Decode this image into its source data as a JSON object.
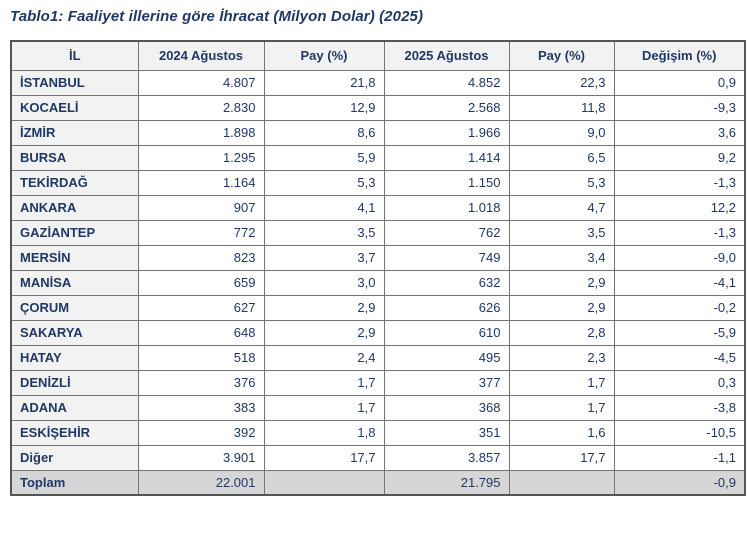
{
  "page": {
    "title": "Tablo1: Faaliyet illerine göre İhracat (Milyon Dolar) (2025)"
  },
  "table": {
    "headers": [
      "İL",
      "2024 Ağustos",
      "Pay (%)",
      "2025 Ağustos",
      "Pay (%)",
      "Değişim (%)"
    ],
    "rows": [
      [
        "İSTANBUL",
        "4.807",
        "21,8",
        "4.852",
        "22,3",
        "0,9"
      ],
      [
        "KOCAELİ",
        "2.830",
        "12,9",
        "2.568",
        "11,8",
        "-9,3"
      ],
      [
        "İZMİR",
        "1.898",
        "8,6",
        "1.966",
        "9,0",
        "3,6"
      ],
      [
        "BURSA",
        "1.295",
        "5,9",
        "1.414",
        "6,5",
        "9,2"
      ],
      [
        "TEKİRDAĞ",
        "1.164",
        "5,3",
        "1.150",
        "5,3",
        "-1,3"
      ],
      [
        "ANKARA",
        "907",
        "4,1",
        "1.018",
        "4,7",
        "12,2"
      ],
      [
        "GAZİANTEP",
        "772",
        "3,5",
        "762",
        "3,5",
        "-1,3"
      ],
      [
        "MERSİN",
        "823",
        "3,7",
        "749",
        "3,4",
        "-9,0"
      ],
      [
        "MANİSA",
        "659",
        "3,0",
        "632",
        "2,9",
        "-4,1"
      ],
      [
        "ÇORUM",
        "627",
        "2,9",
        "626",
        "2,9",
        "-0,2"
      ],
      [
        "SAKARYA",
        "648",
        "2,9",
        "610",
        "2,8",
        "-5,9"
      ],
      [
        "HATAY",
        "518",
        "2,4",
        "495",
        "2,3",
        "-4,5"
      ],
      [
        "DENİZLİ",
        "376",
        "1,7",
        "377",
        "1,7",
        "0,3"
      ],
      [
        "ADANA",
        "383",
        "1,7",
        "368",
        "1,7",
        "-3,8"
      ],
      [
        "ESKİŞEHİR",
        "392",
        "1,8",
        "351",
        "1,6",
        "-10,5"
      ],
      [
        "Diğer",
        "3.901",
        "17,7",
        "3.857",
        "17,7",
        "-1,1"
      ]
    ],
    "total": [
      "Toplam",
      "22.001",
      "",
      "21.795",
      "",
      "-0,9"
    ]
  },
  "chart_data": {
    "type": "table",
    "title": "Tablo1: Faaliyet illerine göre İhracat (Milyon Dolar) (2025)",
    "columns": [
      "İL",
      "2024 Ağustos",
      "Pay (%)",
      "2025 Ağustos",
      "Pay (%)",
      "Değişim (%)"
    ],
    "rows": [
      {
        "il": "İSTANBUL",
        "aug_2024": 4807,
        "pay_2024": 21.8,
        "aug_2025": 4852,
        "pay_2025": 22.3,
        "degisim": 0.9
      },
      {
        "il": "KOCAELİ",
        "aug_2024": 2830,
        "pay_2024": 12.9,
        "aug_2025": 2568,
        "pay_2025": 11.8,
        "degisim": -9.3
      },
      {
        "il": "İZMİR",
        "aug_2024": 1898,
        "pay_2024": 8.6,
        "aug_2025": 1966,
        "pay_2025": 9.0,
        "degisim": 3.6
      },
      {
        "il": "BURSA",
        "aug_2024": 1295,
        "pay_2024": 5.9,
        "aug_2025": 1414,
        "pay_2025": 6.5,
        "degisim": 9.2
      },
      {
        "il": "TEKİRDAĞ",
        "aug_2024": 1164,
        "pay_2024": 5.3,
        "aug_2025": 1150,
        "pay_2025": 5.3,
        "degisim": -1.3
      },
      {
        "il": "ANKARA",
        "aug_2024": 907,
        "pay_2024": 4.1,
        "aug_2025": 1018,
        "pay_2025": 4.7,
        "degisim": 12.2
      },
      {
        "il": "GAZİANTEP",
        "aug_2024": 772,
        "pay_2024": 3.5,
        "aug_2025": 762,
        "pay_2025": 3.5,
        "degisim": -1.3
      },
      {
        "il": "MERSİN",
        "aug_2024": 823,
        "pay_2024": 3.7,
        "aug_2025": 749,
        "pay_2025": 3.4,
        "degisim": -9.0
      },
      {
        "il": "MANİSA",
        "aug_2024": 659,
        "pay_2024": 3.0,
        "aug_2025": 632,
        "pay_2025": 2.9,
        "degisim": -4.1
      },
      {
        "il": "ÇORUM",
        "aug_2024": 627,
        "pay_2024": 2.9,
        "aug_2025": 626,
        "pay_2025": 2.9,
        "degisim": -0.2
      },
      {
        "il": "SAKARYA",
        "aug_2024": 648,
        "pay_2024": 2.9,
        "aug_2025": 610,
        "pay_2025": 2.8,
        "degisim": -5.9
      },
      {
        "il": "HATAY",
        "aug_2024": 518,
        "pay_2024": 2.4,
        "aug_2025": 495,
        "pay_2025": 2.3,
        "degisim": -4.5
      },
      {
        "il": "DENİZLİ",
        "aug_2024": 376,
        "pay_2024": 1.7,
        "aug_2025": 377,
        "pay_2025": 1.7,
        "degisim": 0.3
      },
      {
        "il": "ADANA",
        "aug_2024": 383,
        "pay_2024": 1.7,
        "aug_2025": 368,
        "pay_2025": 1.7,
        "degisim": -3.8
      },
      {
        "il": "ESKİŞEHİR",
        "aug_2024": 392,
        "pay_2024": 1.8,
        "aug_2025": 351,
        "pay_2025": 1.6,
        "degisim": -10.5
      },
      {
        "il": "Diğer",
        "aug_2024": 3901,
        "pay_2024": 17.7,
        "aug_2025": 3857,
        "pay_2025": 17.7,
        "degisim": -1.1
      },
      {
        "il": "Toplam",
        "aug_2024": 22001,
        "pay_2024": null,
        "aug_2025": 21795,
        "pay_2025": null,
        "degisim": -0.9
      }
    ]
  },
  "colors": {
    "text_navy": "#1f3864",
    "header_bg": "#f2f2f2",
    "row_label_bg": "#f2f2f2",
    "total_row_bg": "#d6d6d6",
    "border": "#757575"
  }
}
